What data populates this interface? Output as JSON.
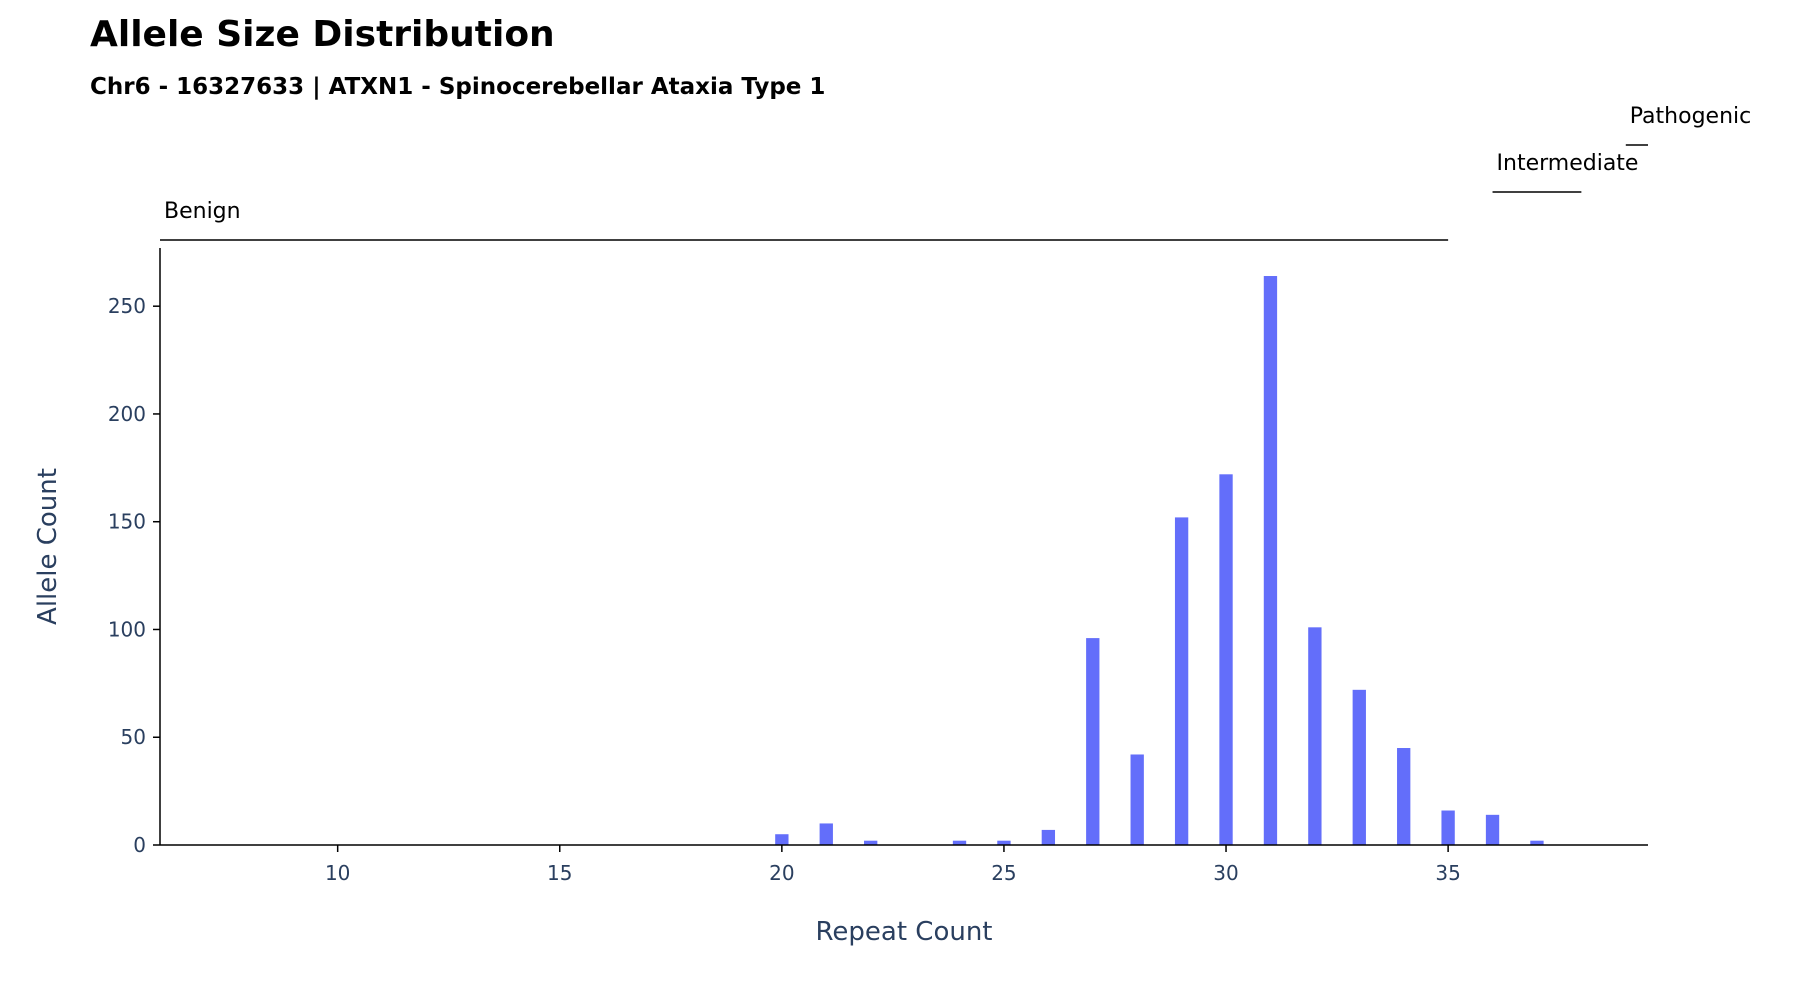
{
  "chart_data": {
    "type": "bar",
    "title": "Allele Size Distribution",
    "subtitle": "Chr6 - 16327633 | ATXN1 - Spinocerebellar Ataxia Type 1",
    "xlabel": "Repeat Count",
    "ylabel": "Allele Count",
    "xlim": [
      6,
      39.5
    ],
    "ylim": [
      0,
      277
    ],
    "x_ticks": [
      10,
      15,
      20,
      25,
      30,
      35
    ],
    "y_ticks": [
      0,
      50,
      100,
      150,
      200,
      250
    ],
    "bar_color": "#636efa",
    "x": [
      20,
      21,
      22,
      24,
      25,
      26,
      27,
      28,
      29,
      30,
      31,
      32,
      33,
      34,
      35,
      36,
      37
    ],
    "values": [
      5,
      10,
      2,
      2,
      2,
      7,
      96,
      42,
      152,
      172,
      264,
      101,
      72,
      45,
      16,
      14,
      2
    ],
    "grid": false,
    "ranges": [
      {
        "label": "Benign",
        "start": 6,
        "end": 35
      },
      {
        "label": "Intermediate",
        "start": 36,
        "end": 38
      },
      {
        "label": "Pathogenic",
        "start": 39,
        "end": 39.5
      }
    ]
  }
}
